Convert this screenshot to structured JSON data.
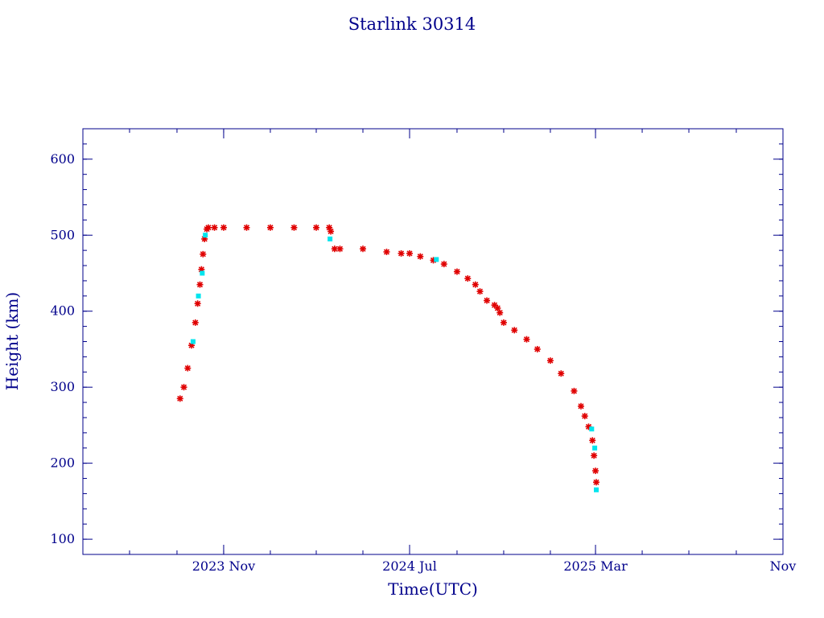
{
  "chart_data": {
    "type": "scatter",
    "title": "Starlink 30314",
    "xlabel": "Time(UTC)",
    "ylabel": "Height (km)",
    "x_range": [
      "2023-05-01",
      "2025-11-01"
    ],
    "ylim": [
      80,
      640
    ],
    "x_ticks": [
      {
        "date": "2023-11-01",
        "label": "2023 Nov"
      },
      {
        "date": "2024-07-01",
        "label": "2024 Jul"
      },
      {
        "date": "2025-03-01",
        "label": "2025 Mar"
      },
      {
        "date": "2025-11-01",
        "label": "Nov"
      }
    ],
    "y_ticks": [
      100,
      200,
      300,
      400,
      500,
      600
    ],
    "grid": false,
    "colors": {
      "axis": "#00008b",
      "primary_marker": "#e00000",
      "secondary_marker": "#00e5ee"
    },
    "series": [
      {
        "marker": "star",
        "color": "#e00000",
        "x": [
          "2023-09-05",
          "2023-09-10",
          "2023-09-15",
          "2023-09-20",
          "2023-09-25",
          "2023-09-28",
          "2023-10-01",
          "2023-10-03",
          "2023-10-05",
          "2023-10-07",
          "2023-10-10",
          "2023-10-12",
          "2023-10-20",
          "2023-11-01",
          "2023-12-01",
          "2024-01-01",
          "2024-02-01",
          "2024-03-01",
          "2024-03-18",
          "2024-03-20",
          "2024-03-25",
          "2024-04-01",
          "2024-05-01",
          "2024-06-01",
          "2024-06-20",
          "2024-07-01",
          "2024-07-15",
          "2024-08-01",
          "2024-08-15",
          "2024-09-01",
          "2024-09-15",
          "2024-09-25",
          "2024-10-01",
          "2024-10-10",
          "2024-10-20",
          "2024-10-24",
          "2024-10-27",
          "2024-11-01",
          "2024-11-15",
          "2024-12-01",
          "2024-12-15",
          "2025-01-01",
          "2025-01-15",
          "2025-02-01",
          "2025-02-10",
          "2025-02-15",
          "2025-02-20",
          "2025-02-25",
          "2025-02-27",
          "2025-03-01",
          "2025-03-02"
        ],
        "y": [
          285,
          300,
          325,
          355,
          385,
          410,
          435,
          455,
          475,
          495,
          508,
          510,
          510,
          510,
          510,
          510,
          510,
          510,
          510,
          505,
          482,
          482,
          482,
          478,
          476,
          476,
          472,
          467,
          462,
          452,
          443,
          435,
          426,
          414,
          408,
          404,
          398,
          385,
          375,
          363,
          350,
          335,
          318,
          295,
          275,
          262,
          248,
          230,
          210,
          190,
          175
        ]
      },
      {
        "marker": "square",
        "color": "#00e5ee",
        "x": [
          "2023-09-22",
          "2023-09-29",
          "2023-10-04",
          "2023-10-08",
          "2024-03-19",
          "2024-08-05",
          "2025-02-24",
          "2025-02-28",
          "2025-03-02"
        ],
        "y": [
          360,
          420,
          450,
          500,
          495,
          468,
          245,
          220,
          165
        ]
      }
    ]
  }
}
